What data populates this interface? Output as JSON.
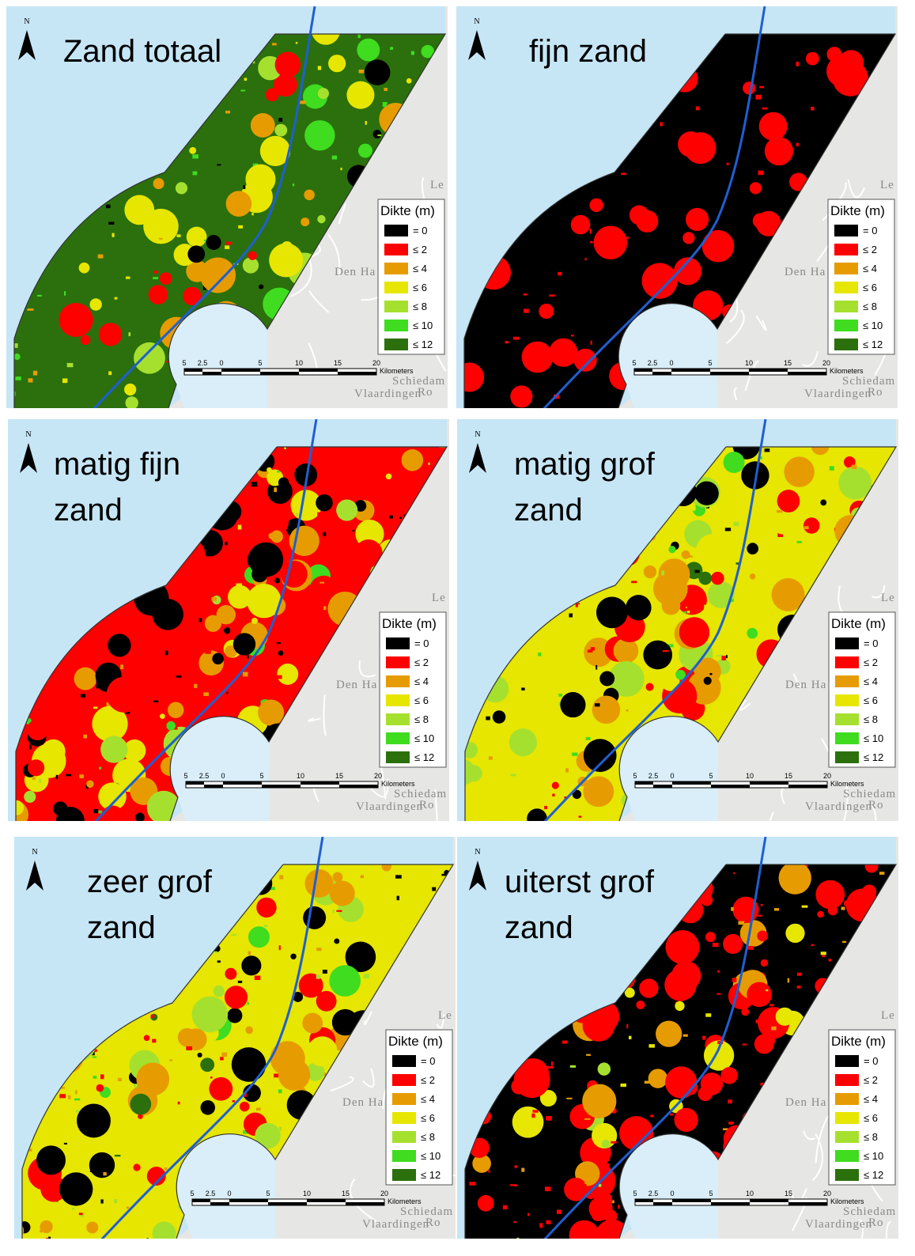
{
  "panels": [
    {
      "title": [
        "Zand totaal"
      ]
    },
    {
      "title": [
        "fijn zand"
      ]
    },
    {
      "title": [
        "matig fijn",
        "zand"
      ]
    },
    {
      "title": [
        "matig grof",
        "zand"
      ]
    },
    {
      "title": [
        "zeer grof",
        "zand"
      ]
    },
    {
      "title": [
        "uiterst grof",
        "zand"
      ]
    }
  ],
  "north": "N",
  "legend": {
    "title": "Dikte (m)",
    "items": [
      {
        "label": "= 0",
        "color": "#000000"
      },
      {
        "label": "≤ 2",
        "color": "#ff0000"
      },
      {
        "label": "≤ 4",
        "color": "#e69c00"
      },
      {
        "label": "≤ 6",
        "color": "#e6e600"
      },
      {
        "label": "≤ 8",
        "color": "#a6e02e"
      },
      {
        "label": "≤ 10",
        "color": "#3fdc1f"
      },
      {
        "label": "≤ 12",
        "color": "#2b700c"
      }
    ]
  },
  "scale_bar": {
    "labels": [
      "5",
      "2.5",
      "0",
      "5",
      "10",
      "15",
      "20"
    ],
    "unit": "Kilometers"
  },
  "place_labels": [
    "Den Ha",
    "Schiedam",
    "Vlaardingen",
    "Ro",
    "Le"
  ]
}
